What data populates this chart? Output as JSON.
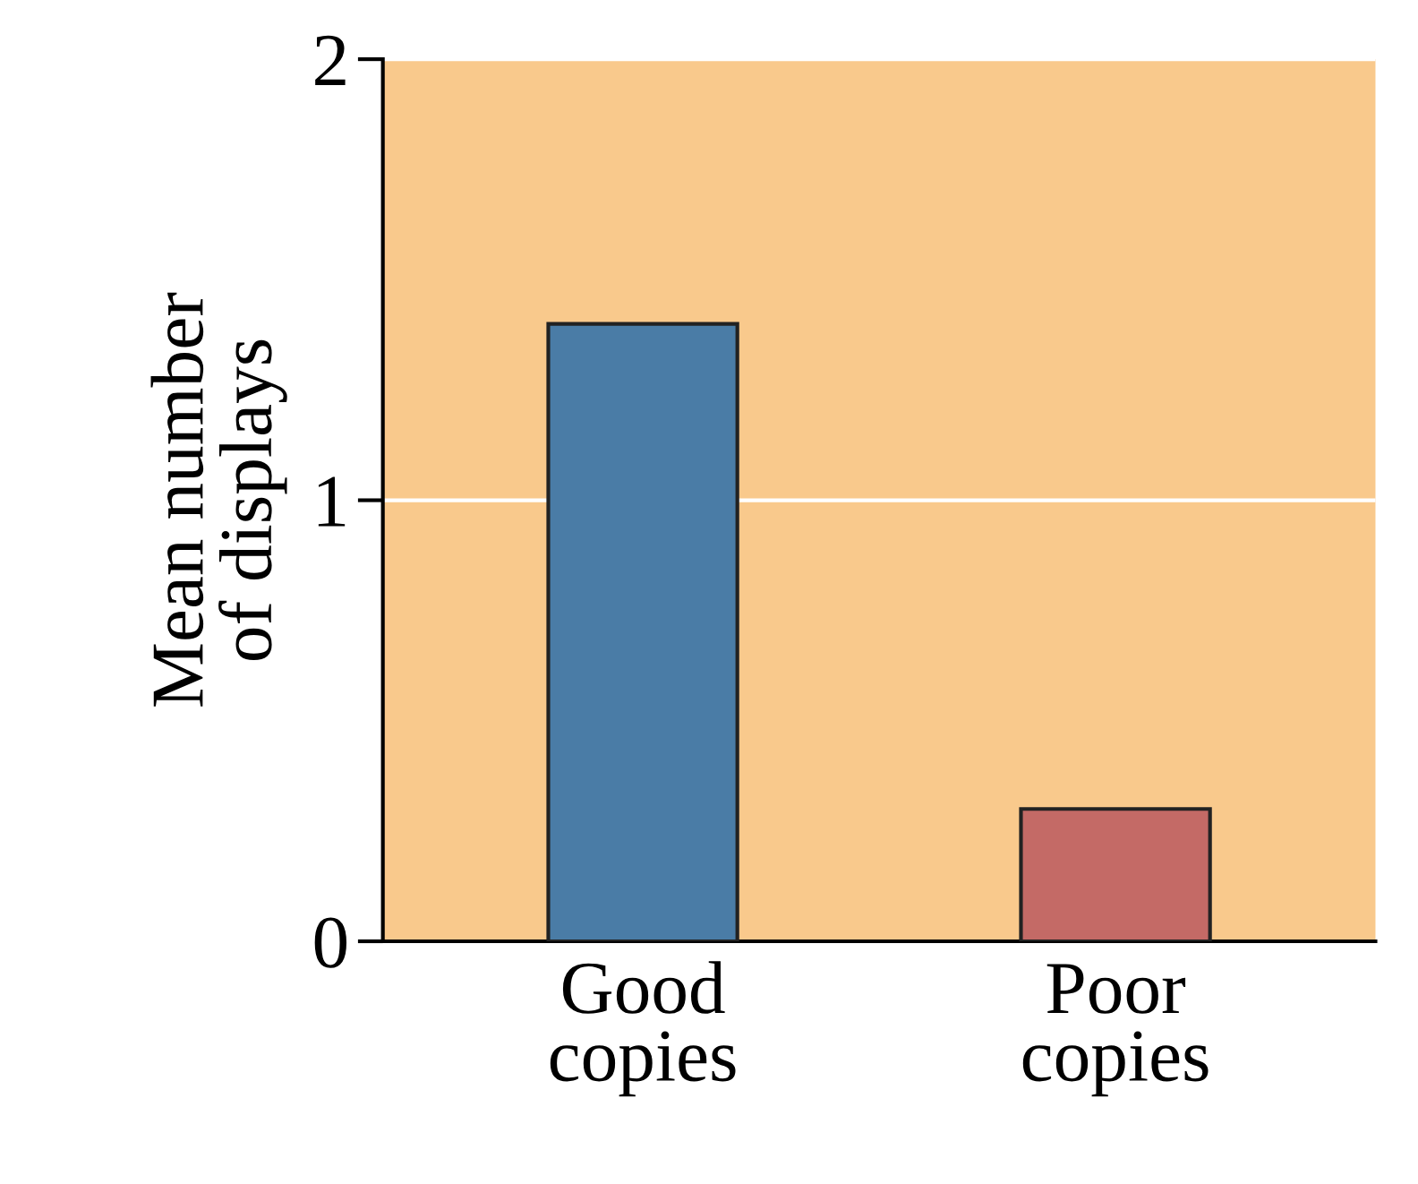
{
  "chart_data": {
    "type": "bar",
    "ylabel": "Mean number\nof displays",
    "categories": [
      "Good\ncopies",
      "Poor\ncopies"
    ],
    "values": [
      1.4,
      0.3
    ],
    "colors": [
      "#4a7ca6",
      "#c46a66"
    ],
    "ylim": [
      0,
      2
    ],
    "yticks": [
      0,
      1,
      2
    ],
    "grid": "y",
    "legend": false
  }
}
